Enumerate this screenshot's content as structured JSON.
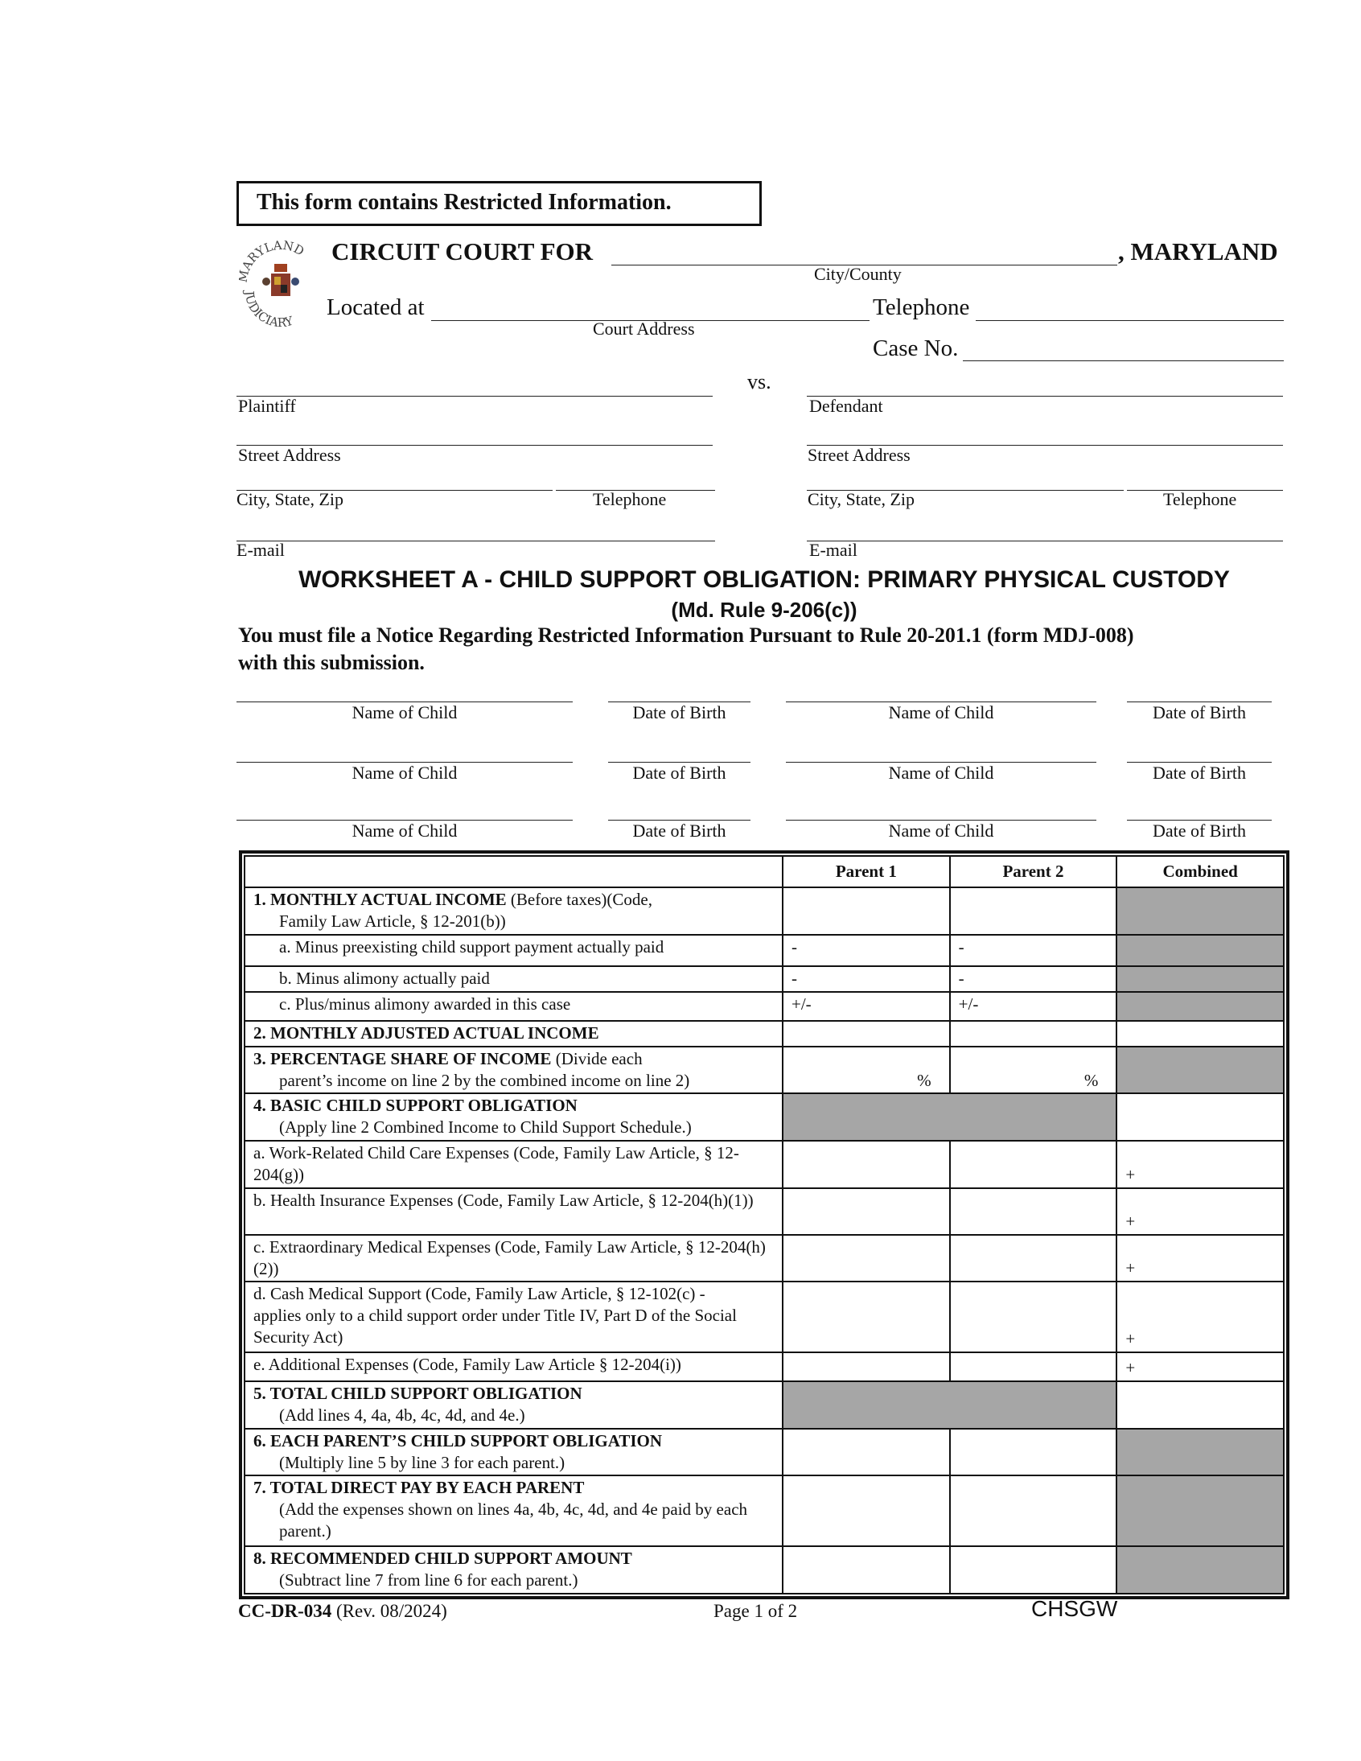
{
  "header": {
    "restricted_notice": "This form contains Restricted Information.",
    "seal_text_top": "MARYLAND",
    "seal_text_bottom": "JUDICIARY",
    "court_prefix": "CIRCUIT COURT FOR",
    "court_suffix": ", MARYLAND",
    "city_county_label": "City/County",
    "located_at": "Located at",
    "court_address_label": "Court Address",
    "telephone": "Telephone",
    "case_no": "Case No.",
    "vs": "vs."
  },
  "parties": {
    "plaintiff": "Plaintiff",
    "defendant": "Defendant",
    "street_address": "Street Address",
    "city_state_zip": "City, State, Zip",
    "telephone": "Telephone",
    "email": "E-mail"
  },
  "worksheet": {
    "title": "WORKSHEET A - CHILD SUPPORT OBLIGATION: PRIMARY PHYSICAL CUSTODY",
    "rule": "(Md. Rule 9-206(c))",
    "notice_line1": "You must file a Notice Regarding Restricted Information Pursuant to Rule 20-201.1 (form MDJ-008)",
    "notice_line2": "with this submission."
  },
  "children": {
    "name_label": "Name of Child",
    "dob_label": "Date of Birth"
  },
  "table": {
    "headers": [
      "",
      "Parent 1",
      "Parent 2",
      "Combined"
    ],
    "rows": {
      "r1_bold": "1. MONTHLY ACTUAL INCOME",
      "r1_rest": " (Before taxes)(Code,",
      "r1_line2": "Family Law Article, § 12-201(b))",
      "r1a": "a. Minus preexisting child support payment actually paid",
      "r1b": "b. Minus alimony actually paid",
      "r1c": "c. Plus/minus alimony awarded in this case",
      "r2": "2. MONTHLY ADJUSTED ACTUAL INCOME",
      "r3_bold": "3. PERCENTAGE SHARE OF INCOME",
      "r3_rest": " (Divide each",
      "r3_line2": "parent’s income on line 2 by the combined income on line 2)",
      "r4_bold": "4. BASIC CHILD SUPPORT OBLIGATION",
      "r4_line2": "(Apply line 2 Combined Income to Child Support Schedule.)",
      "r4a": "a. Work-Related Child Care Expenses (Code, Family Law Article, § 12-204(g))",
      "r4b": "b. Health Insurance Expenses (Code, Family Law Article, § 12-204(h)(1))",
      "r4c": "c. Extraordinary Medical Expenses (Code, Family Law Article, § 12-204(h)(2))",
      "r4d": "d. Cash Medical Support (Code, Family Law Article, § 12-102(c) - applies only to a child support order under Title IV, Part D of the Social Security Act)",
      "r4e": "e. Additional Expenses (Code, Family Law Article § 12-204(i))",
      "r5_bold": "5. TOTAL CHILD SUPPORT OBLIGATION",
      "r5_line2": "(Add lines 4, 4a, 4b, 4c, 4d, and 4e.)",
      "r6_bold": "6. EACH PARENT’S CHILD SUPPORT OBLIGATION",
      "r6_line2": "(Multiply line 5 by line 3 for each parent.)",
      "r7_bold": "7. TOTAL DIRECT PAY BY EACH PARENT",
      "r7_line2": "(Add the expenses shown on lines 4a, 4b, 4c, 4d, and 4e paid by each parent.)",
      "r8_bold": "8. RECOMMENDED CHILD SUPPORT AMOUNT",
      "r8_line2": "(Subtract line 7 from line 6 for each parent.)"
    },
    "minus": "-",
    "plusminus": "+/-",
    "percent": "%",
    "plus": "+",
    "shade_color": "#a6a6a6"
  },
  "footer": {
    "form_id": "CC-DR-034",
    "revision": " (Rev. 08/2024)",
    "page": "Page 1 of 2",
    "code": "CHSGW"
  }
}
